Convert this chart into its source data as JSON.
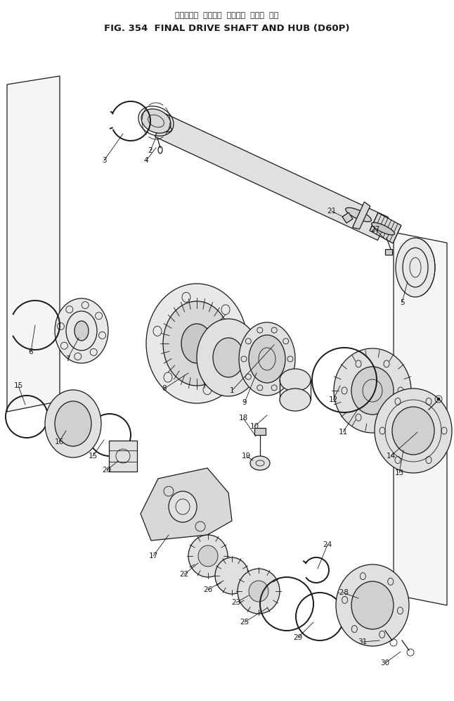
{
  "title_japanese": "ファイナル  ドライブ  シャフト  および  ハブ",
  "title_english": "FIG. 354  FINAL DRIVE SHAFT AND HUB (D60P)",
  "bg": "#ffffff",
  "lc": "#1a1a1a",
  "fig_w": 6.46,
  "fig_h": 9.96,
  "dpi": 100
}
